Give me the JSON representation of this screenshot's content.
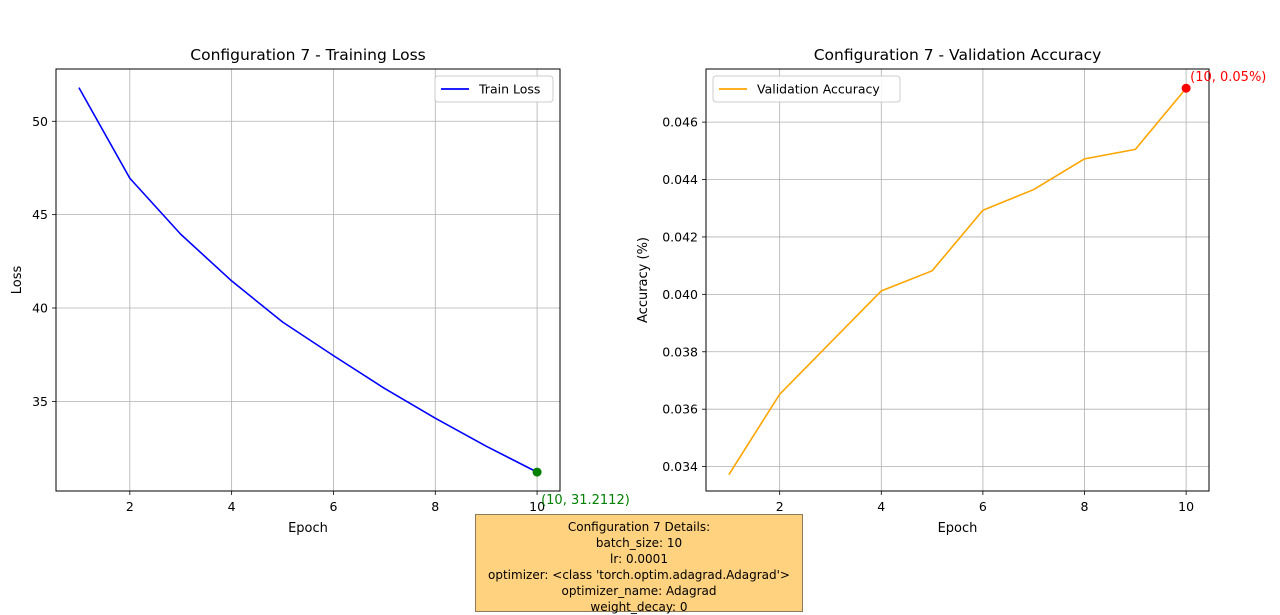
{
  "chart_data": [
    {
      "type": "line",
      "title": "Configuration 7 - Training Loss",
      "xlabel": "Epoch",
      "ylabel": "Loss",
      "xlim": [
        0.55,
        10.45
      ],
      "ylim": [
        30.2,
        52.8
      ],
      "xticks": [
        2,
        4,
        6,
        8,
        10
      ],
      "yticks": [
        35,
        40,
        45,
        50
      ],
      "grid": true,
      "legend_position": "top-right",
      "series": [
        {
          "name": "Train Loss",
          "color": "#0000ff",
          "x": [
            1,
            2,
            3,
            4,
            5,
            6,
            7,
            8,
            9,
            10
          ],
          "values": [
            51.8,
            46.95,
            43.95,
            41.45,
            39.25,
            37.45,
            35.7,
            34.1,
            32.6,
            31.2112
          ]
        }
      ],
      "highlight": {
        "x": 10,
        "y": 31.2112,
        "label": "(10, 31.2112)",
        "color": "#008000"
      }
    },
    {
      "type": "line",
      "title": "Configuration 7 - Validation Accuracy",
      "xlabel": "Epoch",
      "ylabel": "Accuracy (%)",
      "xlim": [
        0.55,
        10.45
      ],
      "ylim": [
        0.03315,
        0.04785
      ],
      "xticks": [
        2,
        4,
        6,
        8,
        10
      ],
      "yticks": [
        0.034,
        0.036,
        0.038,
        0.04,
        0.042,
        0.044,
        0.046
      ],
      "ytick_labels": [
        "0.034",
        "0.036",
        "0.038",
        "0.040",
        "0.042",
        "0.044",
        "0.046"
      ],
      "grid": true,
      "legend_position": "top-left",
      "series": [
        {
          "name": "Validation Accuracy",
          "color": "#ffa500",
          "x": [
            1,
            2,
            3,
            4,
            5,
            6,
            7,
            8,
            9,
            10
          ],
          "values": [
            0.03372,
            0.03652,
            0.03832,
            0.04012,
            0.04082,
            0.04293,
            0.04365,
            0.04472,
            0.04505,
            0.04718
          ]
        }
      ],
      "highlight": {
        "x": 10,
        "y": 0.04718,
        "label": "(10, 0.05%)",
        "color": "#ff0000"
      }
    }
  ],
  "details": {
    "lines": [
      "Configuration 7 Details:",
      "batch_size: 10",
      "lr: 0.0001",
      "optimizer: <class 'torch.optim.adagrad.Adagrad'>",
      "optimizer_name: Adagrad",
      "weight_decay: 0"
    ],
    "background": "#ffd27f"
  }
}
